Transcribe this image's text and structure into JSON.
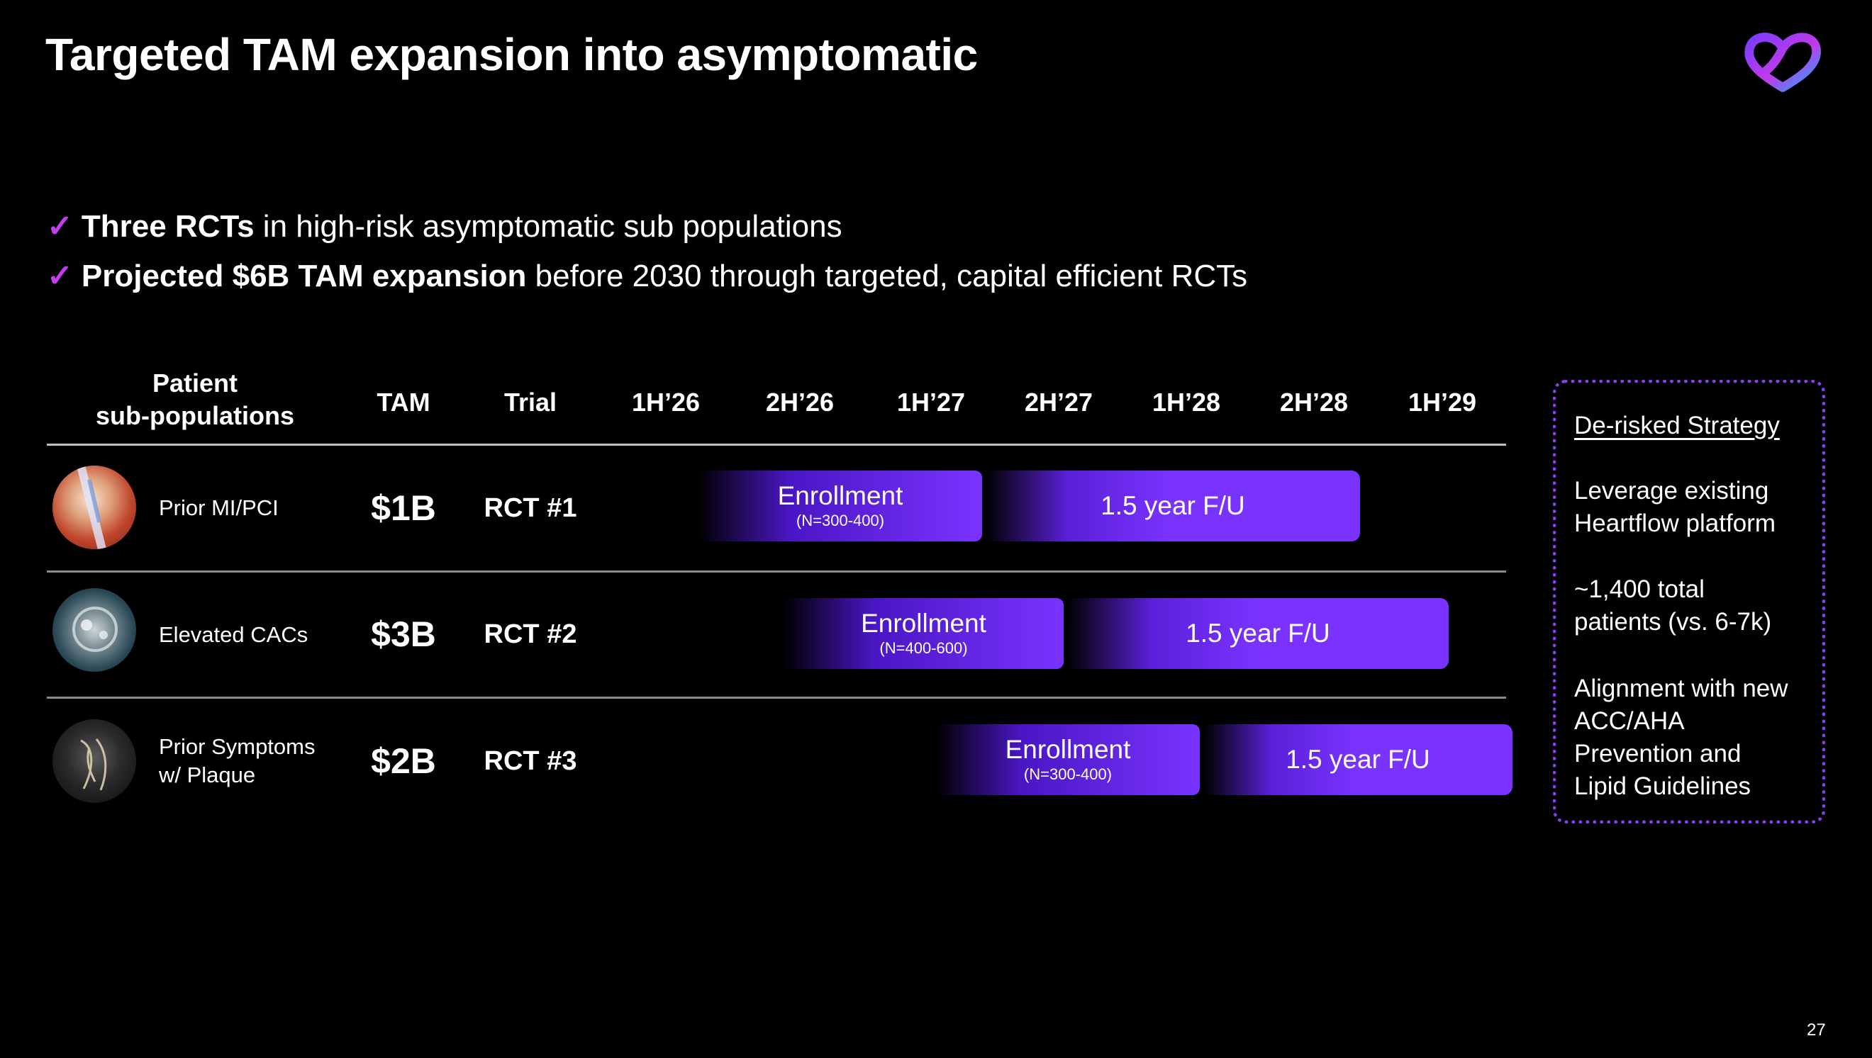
{
  "slide": {
    "title": "Targeted TAM expansion into asymptomatic",
    "page_number": "27",
    "bullets": [
      {
        "check": "✓",
        "bold": "Three RCTs",
        "rest": " in high-risk asymptomatic sub populations"
      },
      {
        "check": "✓",
        "bold": "Projected $6B TAM expansion",
        "rest": " before 2030 through targeted, capital efficient RCTs"
      }
    ]
  },
  "table": {
    "headers": {
      "population_line1": "Patient",
      "population_line2": "sub-populations",
      "tam": "TAM",
      "trial": "Trial",
      "periods": [
        "1H’26",
        "2H’26",
        "1H’27",
        "2H’27",
        "1H’28",
        "2H’28",
        "1H’29"
      ]
    },
    "rows": [
      {
        "population_line1": "Prior MI/PCI",
        "population_line2": "",
        "tam": "$1B",
        "trial": "RCT #1",
        "enrollment": {
          "label": "Enrollment",
          "n": "(N=300-400)"
        },
        "followup": {
          "label": "1.5 year F/U"
        }
      },
      {
        "population_line1": "Elevated CACs",
        "population_line2": "",
        "tam": "$3B",
        "trial": "RCT #2",
        "enrollment": {
          "label": "Enrollment",
          "n": "(N=400-600)"
        },
        "followup": {
          "label": "1.5 year F/U"
        }
      },
      {
        "population_line1": "Prior Symptoms",
        "population_line2": "w/ Plaque",
        "tam": "$2B",
        "trial": "RCT #3",
        "enrollment": {
          "label": "Enrollment",
          "n": "(N=300-400)"
        },
        "followup": {
          "label": "1.5 year F/U"
        }
      }
    ]
  },
  "sidebar": {
    "title": "De-risked Strategy",
    "points": [
      [
        "Leverage existing",
        "Heartflow platform"
      ],
      [
        "~1,400 total",
        "patients (vs. 6-7k)"
      ],
      [
        "Alignment with new",
        "ACC/AHA",
        "Prevention and",
        "Lipid Guidelines"
      ]
    ]
  },
  "colors": {
    "accent": "#7a33ff",
    "check": "#c23cf0",
    "dotted_border": "#8a3df0"
  }
}
